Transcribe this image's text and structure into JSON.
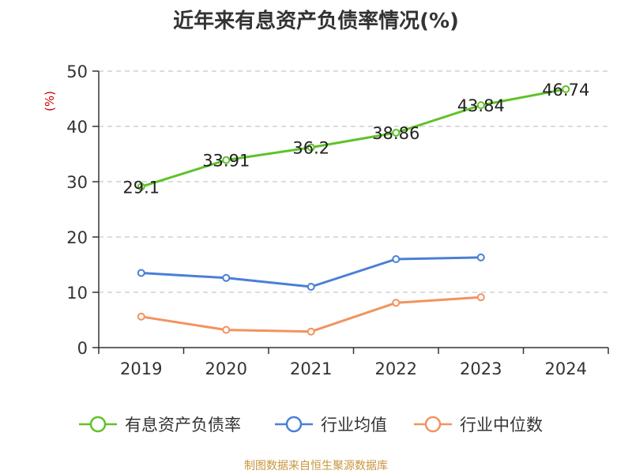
{
  "chart_data": {
    "type": "line",
    "title": "近年来有息资产负债率情况(%)",
    "ylabel": "(%)",
    "xlabel": "",
    "categories": [
      "2019",
      "2020",
      "2021",
      "2022",
      "2023",
      "2024"
    ],
    "ylim": [
      0,
      50
    ],
    "yticks": [
      0,
      10,
      20,
      30,
      40,
      50
    ],
    "grid": "horizontal dashed",
    "legend_position": "bottom",
    "series": [
      {
        "name": "有息资产负债率",
        "color": "#5fc22a",
        "values": [
          29.1,
          33.91,
          36.2,
          38.86,
          43.84,
          46.74
        ],
        "show_labels": true
      },
      {
        "name": "行业均值",
        "color": "#4a7fd6",
        "values": [
          13.5,
          12.6,
          11.0,
          16.0,
          16.3,
          null
        ],
        "show_labels": false
      },
      {
        "name": "行业中位数",
        "color": "#f29360",
        "values": [
          5.6,
          3.2,
          2.9,
          8.1,
          9.1,
          null
        ],
        "show_labels": false
      }
    ]
  },
  "colors": {
    "axis": "#333333",
    "grid": "#c8c8c8",
    "ylabel": "#cc0000",
    "source": "#c8963c"
  },
  "source_text": "制图数据来自恒生聚源数据库"
}
